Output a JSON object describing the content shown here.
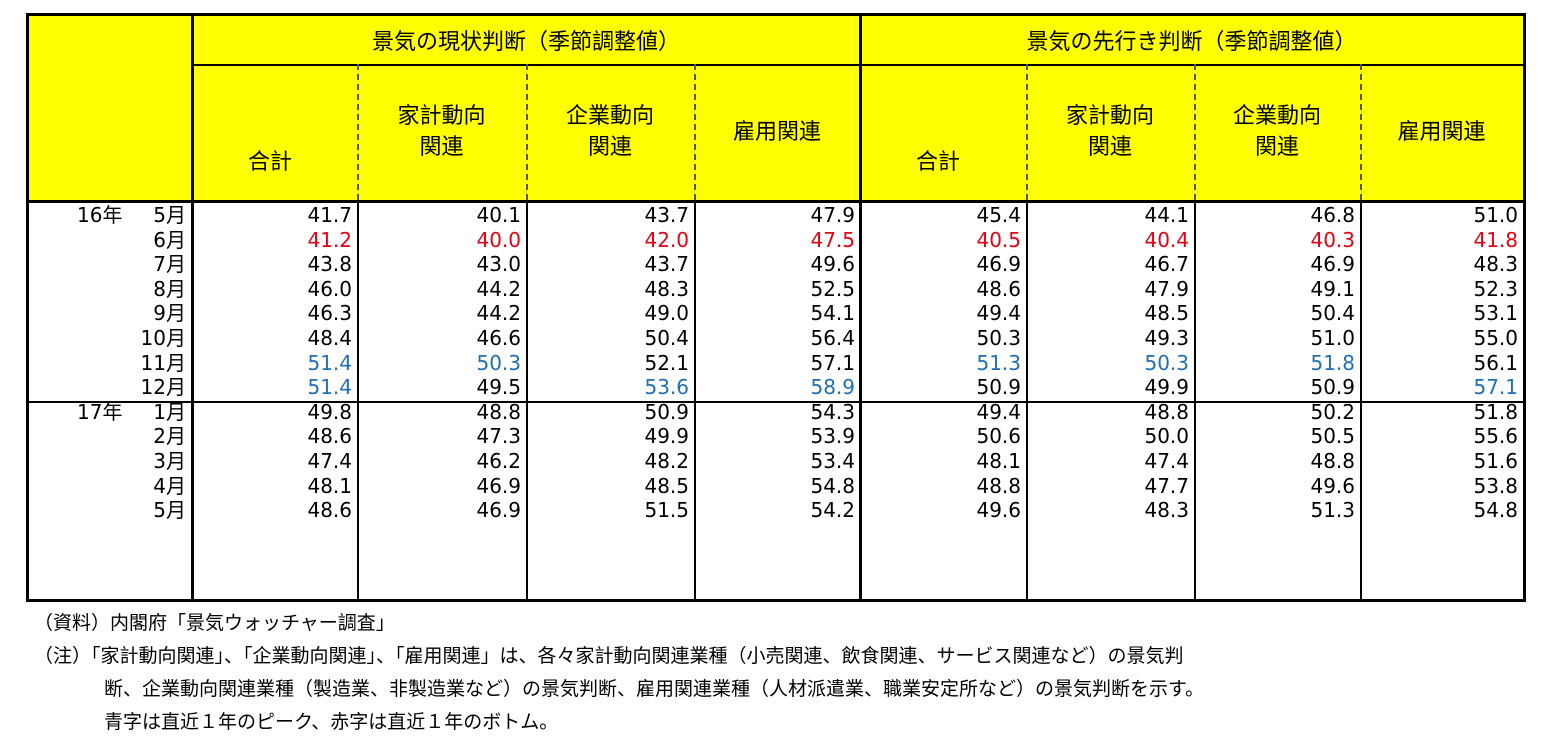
{
  "header": {
    "group_left": "景気の現状判断（季節調整値）",
    "group_right": "景気の先行き判断（季節調整値）",
    "columns": [
      [
        "合計"
      ],
      [
        "家計動向",
        "関連"
      ],
      [
        "企業動向",
        "関連"
      ],
      [
        "雇用関連"
      ],
      [
        "合計"
      ],
      [
        "家計動向",
        "関連"
      ],
      [
        "企業動向",
        "関連"
      ],
      [
        "雇用関連"
      ]
    ]
  },
  "colors": {
    "header_bg": "#ffff00",
    "bottom": "#e60012",
    "peak": "#1f6fb5"
  },
  "rows": [
    {
      "year": "16年",
      "month": "5月",
      "values": [
        "41.7",
        "40.1",
        "43.7",
        "47.9",
        "45.4",
        "44.1",
        "46.8",
        "51.0"
      ],
      "styles": [
        "",
        "",
        "",
        "",
        "",
        "",
        "",
        ""
      ]
    },
    {
      "year": "",
      "month": "6月",
      "values": [
        "41.2",
        "40.0",
        "42.0",
        "47.5",
        "40.5",
        "40.4",
        "40.3",
        "41.8"
      ],
      "styles": [
        "red",
        "red",
        "red",
        "red",
        "red",
        "red",
        "red",
        "red"
      ]
    },
    {
      "year": "",
      "month": "7月",
      "values": [
        "43.8",
        "43.0",
        "43.7",
        "49.6",
        "46.9",
        "46.7",
        "46.9",
        "48.3"
      ],
      "styles": [
        "",
        "",
        "",
        "",
        "",
        "",
        "",
        ""
      ]
    },
    {
      "year": "",
      "month": "8月",
      "values": [
        "46.0",
        "44.2",
        "48.3",
        "52.5",
        "48.6",
        "47.9",
        "49.1",
        "52.3"
      ],
      "styles": [
        "",
        "",
        "",
        "",
        "",
        "",
        "",
        ""
      ]
    },
    {
      "year": "",
      "month": "9月",
      "values": [
        "46.3",
        "44.2",
        "49.0",
        "54.1",
        "49.4",
        "48.5",
        "50.4",
        "53.1"
      ],
      "styles": [
        "",
        "",
        "",
        "",
        "",
        "",
        "",
        ""
      ]
    },
    {
      "year": "",
      "month": "10月",
      "values": [
        "48.4",
        "46.6",
        "50.4",
        "56.4",
        "50.3",
        "49.3",
        "51.0",
        "55.0"
      ],
      "styles": [
        "",
        "",
        "",
        "",
        "",
        "",
        "",
        ""
      ]
    },
    {
      "year": "",
      "month": "11月",
      "values": [
        "51.4",
        "50.3",
        "52.1",
        "57.1",
        "51.3",
        "50.3",
        "51.8",
        "56.1"
      ],
      "styles": [
        "blue",
        "blue",
        "",
        "",
        "blue",
        "blue",
        "blue",
        ""
      ]
    },
    {
      "year": "",
      "month": "12月",
      "values": [
        "51.4",
        "49.5",
        "53.6",
        "58.9",
        "50.9",
        "49.9",
        "50.9",
        "57.1"
      ],
      "styles": [
        "blue",
        "",
        "blue",
        "blue",
        "",
        "",
        "",
        "blue"
      ]
    },
    {
      "year": "17年",
      "month": "1月",
      "values": [
        "49.8",
        "48.8",
        "50.9",
        "54.3",
        "49.4",
        "48.8",
        "50.2",
        "51.8"
      ],
      "styles": [
        "",
        "",
        "",
        "",
        "",
        "",
        "",
        ""
      ]
    },
    {
      "year": "",
      "month": "2月",
      "values": [
        "48.6",
        "47.3",
        "49.9",
        "53.9",
        "50.6",
        "50.0",
        "50.5",
        "55.6"
      ],
      "styles": [
        "",
        "",
        "",
        "",
        "",
        "",
        "",
        ""
      ]
    },
    {
      "year": "",
      "month": "3月",
      "values": [
        "47.4",
        "46.2",
        "48.2",
        "53.4",
        "48.1",
        "47.4",
        "48.8",
        "51.6"
      ],
      "styles": [
        "",
        "",
        "",
        "",
        "",
        "",
        "",
        ""
      ]
    },
    {
      "year": "",
      "month": "4月",
      "values": [
        "48.1",
        "46.9",
        "48.5",
        "54.8",
        "48.8",
        "47.7",
        "49.6",
        "53.8"
      ],
      "styles": [
        "",
        "",
        "",
        "",
        "",
        "",
        "",
        ""
      ]
    },
    {
      "year": "",
      "month": "5月",
      "values": [
        "48.6",
        "46.9",
        "51.5",
        "54.2",
        "49.6",
        "48.3",
        "51.3",
        "54.8"
      ],
      "styles": [
        "",
        "",
        "",
        "",
        "",
        "",
        "",
        ""
      ]
    }
  ],
  "notes": {
    "source": "（資料）内閣府「景気ウォッチャー調査」",
    "note_line1": "（注）「家計動向関連」、「企業動向関連」、「雇用関連」は、各々家計動向関連業種（小売関連、飲食関連、サービス関連など）の景気判",
    "note_line2": "断、企業動向関連業種（製造業、非製造業など）の景気判断、雇用関連業種（人材派遣業、職業安定所など）の景気判断を示す。",
    "note_line3": "青字は直近１年のピーク、赤字は直近１年のボトム。"
  }
}
